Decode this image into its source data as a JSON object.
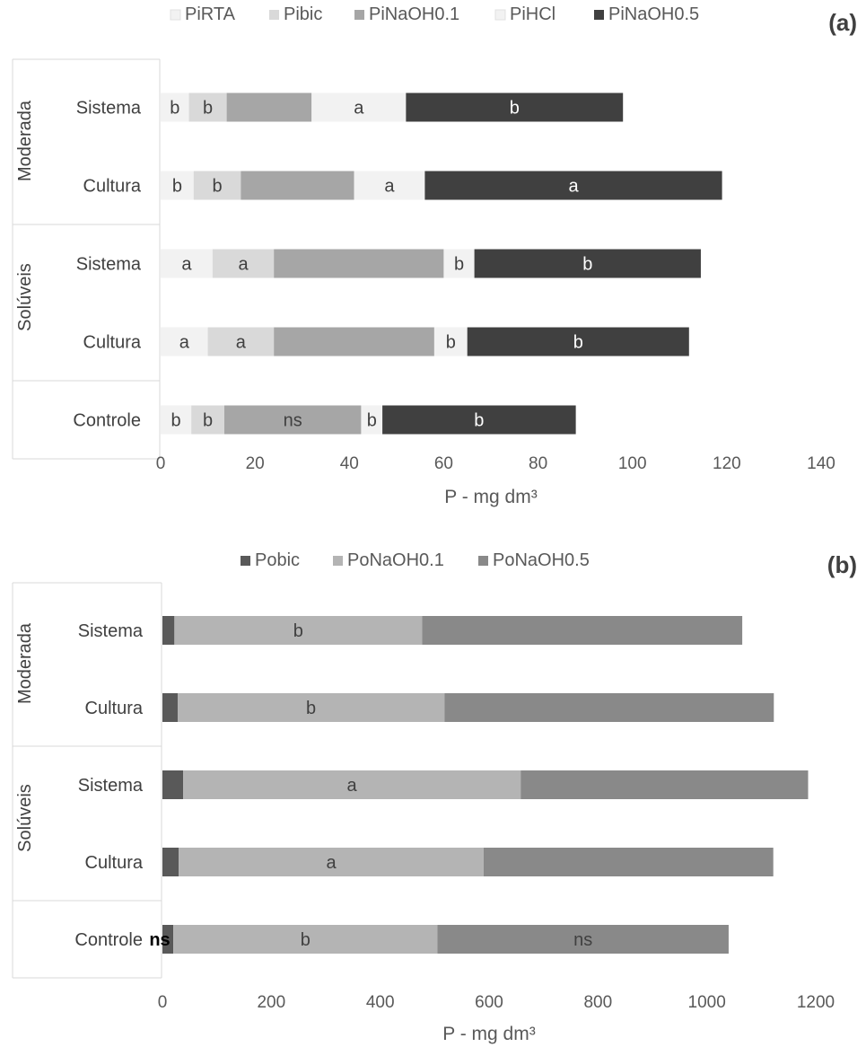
{
  "chart_data": [
    {
      "type": "bar",
      "orientation": "horizontal",
      "stacked": true,
      "panel_label": "(a)",
      "xlabel": "P - mg dm³",
      "xlim": [
        0,
        140
      ],
      "xticks": [
        0,
        20,
        40,
        60,
        80,
        100,
        120,
        140
      ],
      "legend_position": "top",
      "groups": [
        "Moderada",
        "Moderada",
        "Solúveis",
        "Solúveis",
        ""
      ],
      "group_labels": [
        {
          "name": "Moderada",
          "rows": [
            0,
            1
          ]
        },
        {
          "name": "Solúveis",
          "rows": [
            2,
            3
          ]
        }
      ],
      "categories": [
        "Sistema",
        "Cultura",
        "Sistema",
        "Cultura",
        "Controle"
      ],
      "series": [
        {
          "name": "PiRTA",
          "color": "#f2f2f2",
          "label_color": "#404040",
          "values": [
            6,
            7,
            11,
            10,
            6.5
          ],
          "labels": [
            "b",
            "b",
            "a",
            "a",
            "b"
          ]
        },
        {
          "name": "Pibic",
          "color": "#d9d9d9",
          "label_color": "#404040",
          "values": [
            8,
            10,
            13,
            14,
            7
          ],
          "labels": [
            "b",
            "b",
            "a",
            "a",
            "b"
          ]
        },
        {
          "name": "PiNaOH0.1",
          "color": "#a6a6a6",
          "label_color": "#404040",
          "values": [
            18,
            24,
            36,
            34,
            29
          ],
          "labels": [
            "",
            "",
            "",
            "",
            "ns"
          ]
        },
        {
          "name": "PiHCl",
          "color": "#f2f2f2",
          "label_color": "#404040",
          "values": [
            20,
            15,
            6.5,
            7,
            4.5
          ],
          "labels": [
            "a",
            "a",
            "b",
            "b",
            "b"
          ]
        },
        {
          "name": "PiNaOH0.5",
          "color": "#404040",
          "label_color": "#ffffff",
          "values": [
            46,
            63,
            48,
            47,
            41
          ],
          "labels": [
            "b",
            "a",
            "b",
            "b",
            "b"
          ]
        }
      ]
    },
    {
      "type": "bar",
      "orientation": "horizontal",
      "stacked": true,
      "panel_label": "(b)",
      "xlabel": "P - mg dm³",
      "xlim": [
        0,
        1200
      ],
      "xticks": [
        0,
        200,
        400,
        600,
        800,
        1000,
        1200
      ],
      "legend_position": "top",
      "group_labels": [
        {
          "name": "Moderada",
          "rows": [
            0,
            1
          ]
        },
        {
          "name": "Solúveis",
          "rows": [
            2,
            3
          ]
        }
      ],
      "categories": [
        "Sistema",
        "Cultura",
        "Sistema",
        "Cultura",
        "Controle"
      ],
      "series": [
        {
          "name": "Pobic",
          "color": "#595959",
          "label_color": "#000000",
          "values": [
            22,
            28,
            38,
            30,
            20
          ],
          "labels": [
            "",
            "",
            "",
            "",
            "ns"
          ]
        },
        {
          "name": "PoNaOH0.1",
          "color": "#b4b4b4",
          "label_color": "#404040",
          "values": [
            455,
            490,
            620,
            560,
            485
          ],
          "labels": [
            "b",
            "b",
            "a",
            "a",
            "b"
          ]
        },
        {
          "name": "PoNaOH0.5",
          "color": "#898989",
          "label_color": "#404040",
          "values": [
            588,
            605,
            528,
            532,
            535
          ],
          "labels": [
            "",
            "",
            "",
            "",
            "ns"
          ]
        }
      ]
    }
  ]
}
